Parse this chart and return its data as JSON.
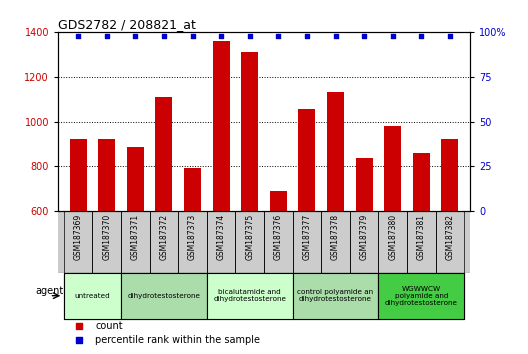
{
  "title": "GDS2782 / 208821_at",
  "samples": [
    "GSM187369",
    "GSM187370",
    "GSM187371",
    "GSM187372",
    "GSM187373",
    "GSM187374",
    "GSM187375",
    "GSM187376",
    "GSM187377",
    "GSM187378",
    "GSM187379",
    "GSM187380",
    "GSM187381",
    "GSM187382"
  ],
  "counts": [
    920,
    922,
    885,
    1110,
    793,
    1360,
    1310,
    688,
    1058,
    1130,
    836,
    980,
    858,
    920
  ],
  "ylim_left": [
    600,
    1400
  ],
  "ylim_right": [
    0,
    100
  ],
  "yticks_left": [
    600,
    800,
    1000,
    1200,
    1400
  ],
  "yticks_right": [
    0,
    25,
    50,
    75,
    100
  ],
  "bar_color": "#cc0000",
  "dot_color": "#0000cc",
  "bar_width": 0.6,
  "groups": [
    {
      "label": "untreated",
      "indices": [
        0,
        1
      ],
      "color": "#ccffcc"
    },
    {
      "label": "dihydrotestosterone",
      "indices": [
        2,
        3,
        4
      ],
      "color": "#aaddaa"
    },
    {
      "label": "bicalutamide and\ndihydrotestosterone",
      "indices": [
        5,
        6,
        7
      ],
      "color": "#ccffcc"
    },
    {
      "label": "control polyamide an\ndihydrotestosterone",
      "indices": [
        8,
        9,
        10
      ],
      "color": "#aaddaa"
    },
    {
      "label": "WGWWCW\npolyamide and\ndihydrotestosterone",
      "indices": [
        11,
        12,
        13
      ],
      "color": "#44cc44"
    }
  ],
  "legend_count_color": "#cc0000",
  "legend_pct_color": "#0000cc",
  "bg_color": "#ffffff",
  "tick_label_color_left": "#cc0000",
  "tick_label_color_right": "#0000cc",
  "xlabel_area_bg": "#cccccc",
  "agent_label": "agent",
  "figure_width": 5.28,
  "figure_height": 3.54,
  "dpi": 100
}
